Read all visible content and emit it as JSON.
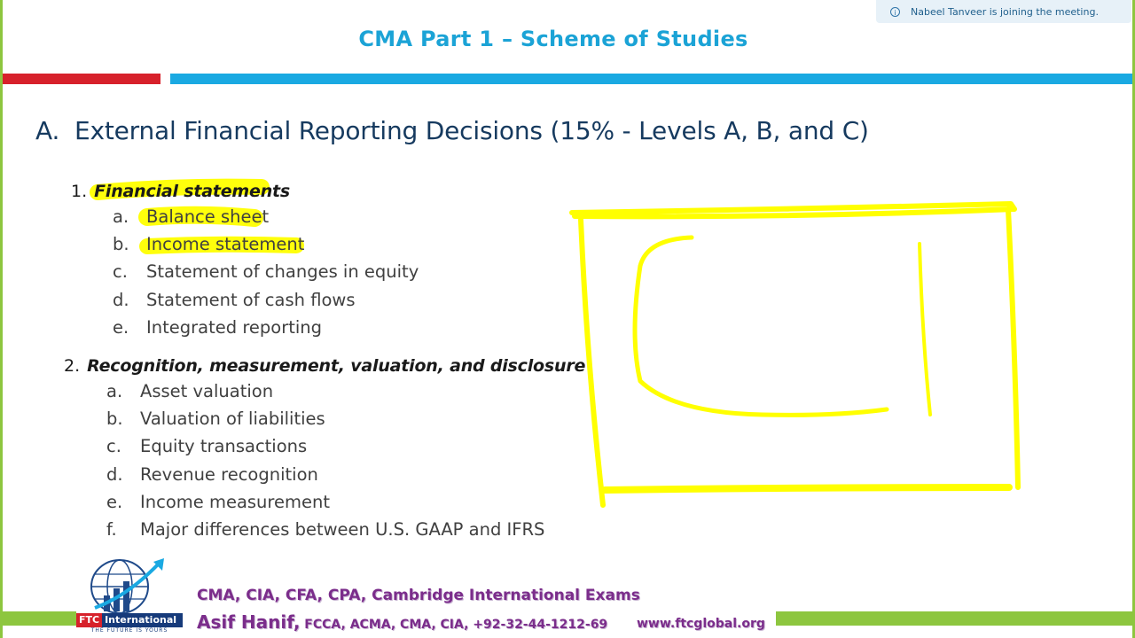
{
  "notification": {
    "text": "Nabeel Tanveer is joining the meeting."
  },
  "slide": {
    "title": "CMA Part 1 – Scheme of Studies",
    "heading_letter": "A.",
    "heading_text": "External Financial Reporting Decisions (15% - Levels A, B, and C)",
    "sections": [
      {
        "number": "1.",
        "title": "Financial statements",
        "items": [
          {
            "letter": "a.",
            "text": "Balance sheet"
          },
          {
            "letter": "b.",
            "text": "Income statement"
          },
          {
            "letter": "c.",
            "text": "Statement of changes in equity"
          },
          {
            "letter": "d.",
            "text": "Statement of cash flows"
          },
          {
            "letter": "e.",
            "text": "Integrated reporting"
          }
        ]
      },
      {
        "number": "2.",
        "title": "Recognition, measurement, valuation, and disclosure",
        "items": [
          {
            "letter": "a.",
            "text": "Asset valuation"
          },
          {
            "letter": "b.",
            "text": "Valuation of liabilities"
          },
          {
            "letter": "c.",
            "text": "Equity transactions"
          },
          {
            "letter": "d.",
            "text": "Revenue recognition"
          },
          {
            "letter": "e.",
            "text": "Income measurement"
          },
          {
            "letter": "f.",
            "text": "Major differences between U.S. GAAP and IFRS"
          }
        ]
      }
    ]
  },
  "footer": {
    "logo_name": "FTC",
    "logo_suffix": "International",
    "logo_tagline": "THE FUTURE IS YOURS",
    "line1": "CMA, CIA, CFA, CPA, Cambridge International Exams",
    "name": "Asif Hanif,",
    "credentials": " FCCA, ACMA, CMA, CIA, +92-32-44-1212-69",
    "website": "www.ftcglobal.org"
  },
  "colors": {
    "title": "#1ba3d6",
    "heading": "#163a5f",
    "accent_red": "#d7212b",
    "accent_blue": "#1aa9e2",
    "accent_green": "#8dc63f",
    "highlighter": "#ffff00",
    "footer_text": "#7b2d8b"
  }
}
